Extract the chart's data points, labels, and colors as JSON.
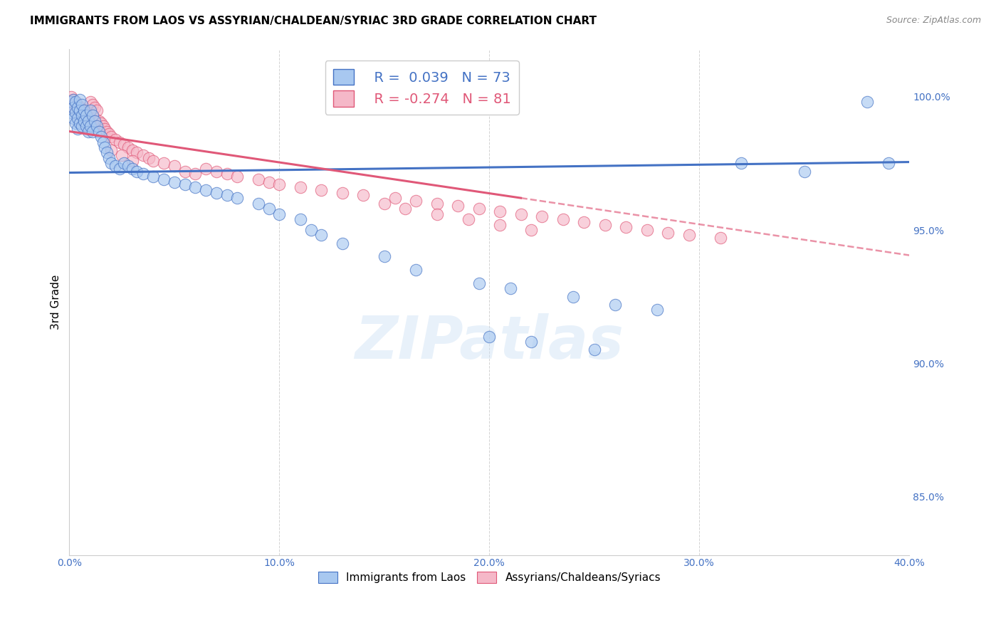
{
  "title": "IMMIGRANTS FROM LAOS VS ASSYRIAN/CHALDEAN/SYRIAC 3RD GRADE CORRELATION CHART",
  "source": "Source: ZipAtlas.com",
  "ylabel": "3rd Grade",
  "xlim": [
    0.0,
    0.4
  ],
  "ylim": [
    0.828,
    1.018
  ],
  "xtick_labels": [
    "0.0%",
    "10.0%",
    "20.0%",
    "30.0%",
    "40.0%"
  ],
  "xtick_values": [
    0.0,
    0.1,
    0.2,
    0.3,
    0.4
  ],
  "ytick_labels": [
    "85.0%",
    "90.0%",
    "95.0%",
    "100.0%"
  ],
  "ytick_values": [
    0.85,
    0.9,
    0.95,
    1.0
  ],
  "blue_scatter_x": [
    0.001,
    0.001,
    0.002,
    0.002,
    0.002,
    0.003,
    0.003,
    0.003,
    0.004,
    0.004,
    0.004,
    0.005,
    0.005,
    0.005,
    0.006,
    0.006,
    0.006,
    0.007,
    0.007,
    0.008,
    0.008,
    0.009,
    0.009,
    0.01,
    0.01,
    0.011,
    0.011,
    0.012,
    0.013,
    0.014,
    0.015,
    0.016,
    0.017,
    0.018,
    0.019,
    0.02,
    0.022,
    0.024,
    0.026,
    0.028,
    0.03,
    0.032,
    0.035,
    0.04,
    0.045,
    0.05,
    0.055,
    0.06,
    0.065,
    0.07,
    0.075,
    0.08,
    0.09,
    0.095,
    0.1,
    0.11,
    0.115,
    0.12,
    0.13,
    0.15,
    0.165,
    0.195,
    0.21,
    0.24,
    0.26,
    0.28,
    0.32,
    0.35,
    0.38,
    0.39,
    0.2,
    0.22,
    0.25
  ],
  "blue_scatter_y": [
    0.998,
    0.994,
    0.999,
    0.996,
    0.992,
    0.998,
    0.994,
    0.99,
    0.996,
    0.992,
    0.988,
    0.999,
    0.995,
    0.99,
    0.997,
    0.993,
    0.989,
    0.995,
    0.991,
    0.993,
    0.989,
    0.991,
    0.987,
    0.995,
    0.989,
    0.993,
    0.987,
    0.991,
    0.989,
    0.987,
    0.985,
    0.983,
    0.981,
    0.979,
    0.977,
    0.975,
    0.974,
    0.973,
    0.975,
    0.974,
    0.973,
    0.972,
    0.971,
    0.97,
    0.969,
    0.968,
    0.967,
    0.966,
    0.965,
    0.964,
    0.963,
    0.962,
    0.96,
    0.958,
    0.956,
    0.954,
    0.95,
    0.948,
    0.945,
    0.94,
    0.935,
    0.93,
    0.928,
    0.925,
    0.922,
    0.92,
    0.975,
    0.972,
    0.998,
    0.975,
    0.91,
    0.908,
    0.905
  ],
  "pink_scatter_x": [
    0.001,
    0.001,
    0.002,
    0.002,
    0.003,
    0.003,
    0.004,
    0.004,
    0.005,
    0.005,
    0.006,
    0.006,
    0.007,
    0.007,
    0.008,
    0.008,
    0.009,
    0.009,
    0.01,
    0.01,
    0.011,
    0.011,
    0.012,
    0.012,
    0.013,
    0.014,
    0.015,
    0.016,
    0.017,
    0.018,
    0.019,
    0.02,
    0.022,
    0.024,
    0.026,
    0.028,
    0.03,
    0.032,
    0.035,
    0.038,
    0.04,
    0.045,
    0.05,
    0.055,
    0.06,
    0.065,
    0.07,
    0.075,
    0.08,
    0.09,
    0.095,
    0.1,
    0.11,
    0.12,
    0.13,
    0.14,
    0.155,
    0.165,
    0.175,
    0.185,
    0.195,
    0.205,
    0.215,
    0.225,
    0.235,
    0.245,
    0.255,
    0.265,
    0.275,
    0.285,
    0.295,
    0.31,
    0.02,
    0.025,
    0.03,
    0.15,
    0.16,
    0.175,
    0.19,
    0.205,
    0.22
  ],
  "pink_scatter_y": [
    1.0,
    0.997,
    0.999,
    0.996,
    0.998,
    0.995,
    0.997,
    0.993,
    0.996,
    0.992,
    0.995,
    0.991,
    0.994,
    0.99,
    0.993,
    0.989,
    0.992,
    0.988,
    0.998,
    0.994,
    0.997,
    0.993,
    0.996,
    0.992,
    0.995,
    0.991,
    0.99,
    0.989,
    0.988,
    0.987,
    0.986,
    0.985,
    0.984,
    0.983,
    0.982,
    0.981,
    0.98,
    0.979,
    0.978,
    0.977,
    0.976,
    0.975,
    0.974,
    0.972,
    0.971,
    0.973,
    0.972,
    0.971,
    0.97,
    0.969,
    0.968,
    0.967,
    0.966,
    0.965,
    0.964,
    0.963,
    0.962,
    0.961,
    0.96,
    0.959,
    0.958,
    0.957,
    0.956,
    0.955,
    0.954,
    0.953,
    0.952,
    0.951,
    0.95,
    0.949,
    0.948,
    0.947,
    0.98,
    0.978,
    0.976,
    0.96,
    0.958,
    0.956,
    0.954,
    0.952,
    0.95
  ],
  "blue_line_x": [
    0.0,
    0.4
  ],
  "blue_line_y": [
    0.9715,
    0.9755
  ],
  "pink_solid_line_x": [
    0.0,
    0.215
  ],
  "pink_solid_line_y": [
    0.987,
    0.962
  ],
  "pink_dashed_line_x": [
    0.215,
    0.4
  ],
  "pink_dashed_line_y": [
    0.962,
    0.9405
  ],
  "blue_color": "#a8c8f0",
  "pink_color": "#f5b8c8",
  "blue_line_color": "#4472c4",
  "pink_line_color": "#e05878",
  "legend_R1": "R =  0.039",
  "legend_N1": "N = 73",
  "legend_R2": "R = -0.274",
  "legend_N2": "N = 81",
  "legend_label1": "Immigrants from Laos",
  "legend_label2": "Assyrians/Chaldeans/Syriacs",
  "watermark": "ZIPatlas",
  "title_fontsize": 11,
  "axis_label_color": "#4472c4",
  "grid_color": "#c8c8c8"
}
